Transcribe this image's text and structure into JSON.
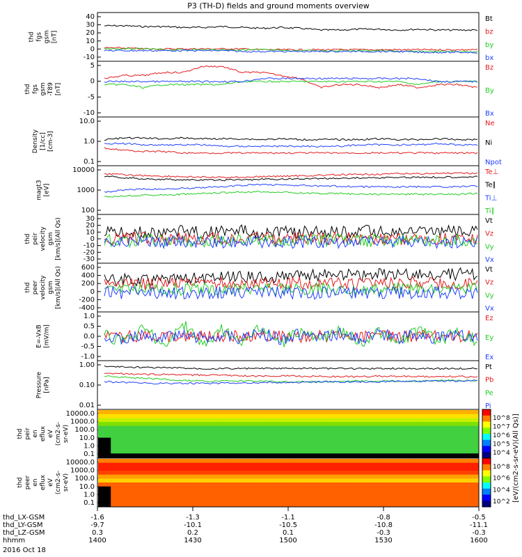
{
  "title": "P3 (TH-D) fields and ground moments overview",
  "colors": {
    "black": "#000000",
    "red": "#e41a1c",
    "green": "#22cc22",
    "blue": "#1f3fff"
  },
  "chart_data": [
    {
      "type": "line",
      "ylabel": [
        "thd",
        "fgs",
        "gsm",
        "[nT]"
      ],
      "yticks": [
        "40",
        "30",
        "20",
        "10",
        "0",
        "-10"
      ],
      "ylim": [
        -10,
        42
      ],
      "legend": [
        {
          "label": "Bt",
          "color": "black"
        },
        {
          "label": "bz",
          "color": "red"
        },
        {
          "label": "by",
          "color": "green"
        },
        {
          "label": "bx",
          "color": "blue"
        }
      ],
      "series": [
        {
          "name": "Bt",
          "color": "black",
          "values": [
            29,
            29,
            28,
            28,
            27,
            27,
            28,
            27,
            26,
            27,
            26,
            24,
            24,
            25,
            25,
            24,
            25,
            24,
            24,
            24
          ]
        },
        {
          "name": "bz",
          "color": "red",
          "values": [
            3,
            3,
            2,
            2,
            2,
            2,
            2,
            2,
            1,
            1,
            1,
            1,
            1,
            1,
            1,
            1,
            1,
            1,
            1,
            1
          ]
        },
        {
          "name": "by",
          "color": "green",
          "values": [
            2,
            2,
            2,
            1,
            1,
            1,
            1,
            1,
            1,
            0,
            0,
            0,
            0,
            0,
            0,
            -1,
            -1,
            -1,
            -1,
            -1
          ]
        },
        {
          "name": "bx",
          "color": "blue",
          "values": [
            0,
            0,
            0,
            0,
            0,
            0,
            0,
            -1,
            -1,
            -1,
            -1,
            -1,
            -1,
            -1,
            -1,
            -1,
            -2,
            -2,
            -2,
            -2
          ]
        }
      ]
    },
    {
      "type": "line",
      "ylabel": [
        "thd",
        "fgs",
        "gsm",
        "-T89",
        "[nT]"
      ],
      "yticks": [
        "5",
        "0",
        "-5",
        "-10"
      ],
      "ylim": [
        -12,
        5
      ],
      "legend": [
        {
          "label": "Bz",
          "color": "red"
        },
        {
          "label": "By",
          "color": "green"
        },
        {
          "label": "Bx",
          "color": "blue"
        }
      ],
      "series": [
        {
          "name": "Bz",
          "color": "red",
          "values": [
            0,
            1,
            1,
            2,
            2,
            4,
            4,
            2,
            2,
            1,
            0,
            -3,
            -2,
            -2,
            -3,
            -2,
            -3,
            -2,
            -2,
            -3
          ]
        },
        {
          "name": "By",
          "color": "green",
          "values": [
            -2,
            -2,
            -3,
            -2,
            -2,
            -2,
            -2,
            -1,
            -1,
            -1,
            -1,
            -1,
            -1,
            -1,
            -1,
            -1,
            -2,
            -1,
            -1,
            -1
          ]
        },
        {
          "name": "Bx",
          "color": "blue",
          "values": [
            -1,
            -1,
            -1,
            -1,
            -1,
            -1,
            -1,
            -1,
            0,
            0,
            0,
            0,
            0,
            0,
            0,
            0,
            0,
            -1,
            -1,
            -1
          ]
        }
      ]
    },
    {
      "type": "line",
      "scale": "log",
      "ylabel": [
        "Density",
        "[1/cc]",
        "[cm-3]"
      ],
      "yticks": [
        "10.0",
        "1.0",
        "0.1"
      ],
      "ylim": [
        0.1,
        10
      ],
      "legend": [
        {
          "label": "Ne",
          "color": "red"
        },
        {
          "label": "Ni",
          "color": "black"
        },
        {
          "label": "Npot",
          "color": "blue"
        }
      ],
      "series": [
        {
          "name": "Ne",
          "color": "red",
          "values": [
            0.5,
            0.4,
            0.35,
            0.35,
            0.3,
            0.3,
            0.3,
            0.3,
            0.3,
            0.3,
            0.3,
            0.3,
            0.3,
            0.3,
            0.3,
            0.3,
            0.3,
            0.3,
            0.3,
            0.3
          ]
        },
        {
          "name": "Ni",
          "color": "black",
          "values": [
            1.2,
            1.4,
            1.4,
            1.3,
            1.4,
            1.3,
            1.3,
            1.3,
            1.2,
            1.3,
            1.2,
            1.2,
            1.2,
            1.2,
            1.3,
            1.2,
            1.2,
            1.3,
            1.2,
            1.2
          ]
        },
        {
          "name": "Npot",
          "color": "blue",
          "values": [
            0.8,
            0.8,
            0.7,
            0.7,
            0.7,
            0.7,
            0.6,
            0.6,
            0.6,
            0.6,
            0.6,
            0.6,
            0.6,
            0.7,
            0.7,
            0.7,
            0.7,
            0.8,
            0.7,
            0.7
          ]
        }
      ]
    },
    {
      "type": "line",
      "scale": "log",
      "ylabel": [
        "magt3",
        "[eV]"
      ],
      "yticks": [
        "10000",
        "1000",
        "100"
      ],
      "ylim": [
        100,
        10000
      ],
      "legend": [
        {
          "label": "Te⊥",
          "color": "red"
        },
        {
          "label": "Te∥",
          "color": "black"
        },
        {
          "label": "Ti⊥",
          "color": "blue"
        },
        {
          "label": "Ti∥",
          "color": "green"
        }
      ],
      "series": [
        {
          "name": "Te⊥",
          "color": "red",
          "values": [
            5500,
            4800,
            4500,
            4200,
            4000,
            3800,
            3700,
            3800,
            4000,
            4200,
            4400,
            4600,
            4800,
            5000,
            5200,
            5400,
            5500,
            5600,
            5600,
            5700
          ]
        },
        {
          "name": "Te∥",
          "color": "black",
          "values": [
            4200,
            3600,
            3200,
            3000,
            2900,
            2800,
            2800,
            2900,
            3000,
            3100,
            3200,
            3300,
            3400,
            3500,
            3600,
            3700,
            3800,
            3800,
            3900,
            4000
          ]
        },
        {
          "name": "Ti⊥",
          "color": "blue",
          "values": [
            800,
            1000,
            1100,
            1100,
            1200,
            1300,
            1400,
            1600,
            1800,
            1700,
            1600,
            1500,
            1500,
            1400,
            1400,
            1400,
            1400,
            1400,
            1400,
            1500
          ]
        },
        {
          "name": "Ti∥",
          "color": "green",
          "values": [
            500,
            550,
            600,
            600,
            650,
            700,
            750,
            800,
            850,
            800,
            750,
            700,
            700,
            650,
            650,
            650,
            650,
            650,
            650,
            700
          ]
        }
      ]
    },
    {
      "type": "line",
      "ylabel": [
        "thd",
        "peir",
        "velocity",
        "gsm",
        "[km/s](All Qs)"
      ],
      "yticks": [
        "30",
        "20",
        "10",
        "0",
        "-10",
        "-20",
        "-30"
      ],
      "ylim": [
        -30,
        30
      ],
      "legend": [
        {
          "label": "Vt",
          "color": "black"
        },
        {
          "label": "Vz",
          "color": "red"
        },
        {
          "label": "Vy",
          "color": "green"
        },
        {
          "label": "Vx",
          "color": "blue"
        }
      ],
      "series": [
        {
          "name": "Vt",
          "color": "black",
          "values": [
            8,
            9,
            8,
            9,
            10,
            9,
            10,
            11,
            9,
            10,
            9,
            10,
            9,
            10,
            10,
            9,
            10,
            9,
            10,
            9
          ]
        },
        {
          "name": "Vz",
          "color": "red",
          "values": [
            1,
            0,
            1,
            0,
            1,
            0,
            1,
            0,
            1,
            0,
            1,
            0,
            1,
            0,
            1,
            0,
            1,
            0,
            1,
            0
          ]
        },
        {
          "name": "Vy",
          "color": "green",
          "values": [
            -2,
            -3,
            -2,
            -3,
            -2,
            -3,
            -2,
            -3,
            -2,
            -3,
            -2,
            -3,
            -2,
            -3,
            -2,
            -3,
            -2,
            -3,
            -2,
            -3
          ]
        },
        {
          "name": "Vx",
          "color": "blue",
          "values": [
            -4,
            -5,
            -4,
            -5,
            -4,
            -5,
            -4,
            -5,
            -4,
            -5,
            -4,
            -5,
            -4,
            -5,
            -4,
            -5,
            -4,
            -5,
            -4,
            -5
          ]
        }
      ]
    },
    {
      "type": "line",
      "ylabel": [
        "thd",
        "peer",
        "velocity",
        "gsm",
        "[km/s](All Qs)"
      ],
      "yticks": [
        "600",
        "400",
        "200",
        "0",
        "-200",
        "-400"
      ],
      "ylim": [
        -450,
        650
      ],
      "legend": [
        {
          "label": "Vt",
          "color": "black"
        },
        {
          "label": "Vz",
          "color": "red"
        },
        {
          "label": "Vy",
          "color": "green"
        },
        {
          "label": "Vx",
          "color": "blue"
        }
      ],
      "series": [
        {
          "name": "Vt",
          "color": "black",
          "values": [
            300,
            290,
            300,
            310,
            320,
            330,
            340,
            350,
            360,
            380,
            390,
            400,
            400,
            410,
            420,
            410,
            420,
            420,
            430,
            430
          ]
        },
        {
          "name": "Vz",
          "color": "red",
          "values": [
            200,
            190,
            200,
            200,
            210,
            200,
            210,
            200,
            210,
            200,
            210,
            200,
            210,
            200,
            210,
            200,
            210,
            200,
            210,
            200
          ]
        },
        {
          "name": "Vy",
          "color": "green",
          "values": [
            60,
            70,
            60,
            70,
            60,
            70,
            60,
            70,
            60,
            70,
            60,
            70,
            60,
            70,
            60,
            70,
            60,
            70,
            60,
            70
          ]
        },
        {
          "name": "Vx",
          "color": "blue",
          "values": [
            -20,
            -30,
            -20,
            -40,
            -30,
            -20,
            -30,
            -40,
            -30,
            -20,
            -40,
            -30,
            -20,
            -30,
            -40,
            -30,
            -20,
            -30,
            -40,
            -30
          ]
        }
      ]
    },
    {
      "type": "line",
      "ylabel": [
        "E=-VxB",
        "[mV/m]"
      ],
      "yticks": [
        "1.0",
        "0.5",
        "0.0",
        "-0.5",
        "-1.0"
      ],
      "ylim": [
        -1.0,
        1.0
      ],
      "legend": [
        {
          "label": "Ez",
          "color": "red"
        },
        {
          "label": "Ey",
          "color": "green"
        },
        {
          "label": "Ex",
          "color": "blue"
        }
      ],
      "series": [
        {
          "name": "Ez",
          "color": "red",
          "values": [
            0,
            0,
            0,
            0,
            0,
            0,
            0,
            0,
            0,
            0,
            0,
            0,
            0,
            0,
            0,
            0,
            0,
            0,
            0,
            0
          ]
        },
        {
          "name": "Ey",
          "color": "green",
          "values": [
            0.1,
            -0.3,
            0.4,
            -0.5,
            0.6,
            -0.4,
            0.3,
            -0.3,
            0.4,
            -0.3,
            0.3,
            -0.2,
            0.3,
            -0.3,
            0.2,
            -0.3,
            0.3,
            -0.2,
            0.2,
            -0.2
          ]
        },
        {
          "name": "Ex",
          "color": "blue",
          "values": [
            0,
            -0.1,
            0.1,
            -0.1,
            0.1,
            -0.1,
            0.1,
            -0.1,
            0.1,
            -0.1,
            0.1,
            -0.1,
            0.1,
            -0.1,
            0.1,
            -0.1,
            0.1,
            -0.1,
            0.1,
            -0.1
          ]
        }
      ]
    },
    {
      "type": "line",
      "scale": "log",
      "ylabel": [
        "Pressure",
        "[nPa]"
      ],
      "yticks": [
        "1.00",
        "0.10",
        "0.01"
      ],
      "ylim": [
        0.01,
        1.0
      ],
      "legend": [
        {
          "label": "Pt",
          "color": "black"
        },
        {
          "label": "Pb",
          "color": "red"
        },
        {
          "label": "Pe",
          "color": "green"
        },
        {
          "label": "Pi",
          "color": "blue"
        }
      ],
      "series": [
        {
          "name": "Pt",
          "color": "black",
          "values": [
            0.7,
            0.65,
            0.62,
            0.6,
            0.58,
            0.55,
            0.55,
            0.55,
            0.55,
            0.55,
            0.55,
            0.55,
            0.55,
            0.55,
            0.55,
            0.55,
            0.55,
            0.55,
            0.55,
            0.55
          ]
        },
        {
          "name": "Pb",
          "color": "red",
          "values": [
            0.35,
            0.32,
            0.3,
            0.3,
            0.28,
            0.28,
            0.27,
            0.26,
            0.25,
            0.26,
            0.25,
            0.24,
            0.24,
            0.24,
            0.25,
            0.24,
            0.24,
            0.24,
            0.24,
            0.24
          ]
        },
        {
          "name": "Pe",
          "color": "green",
          "values": [
            0.25,
            0.22,
            0.2,
            0.18,
            0.16,
            0.15,
            0.15,
            0.15,
            0.15,
            0.14,
            0.14,
            0.14,
            0.14,
            0.15,
            0.15,
            0.15,
            0.15,
            0.16,
            0.16,
            0.16
          ]
        },
        {
          "name": "Pi",
          "color": "blue",
          "values": [
            0.14,
            0.13,
            0.12,
            0.12,
            0.12,
            0.12,
            0.12,
            0.12,
            0.13,
            0.13,
            0.13,
            0.14,
            0.14,
            0.14,
            0.14,
            0.15,
            0.15,
            0.15,
            0.15,
            0.16
          ]
        }
      ]
    },
    {
      "type": "heatmap",
      "ylabel": [
        "thd",
        "peir",
        "en",
        "eflux",
        "eV",
        "(cm2-s-",
        "sr-eV)"
      ],
      "yticks": [
        "10000.0",
        "1000.0",
        "100.0",
        "10.0",
        "1.0",
        "0.1"
      ],
      "colorbar_ticks": [
        "10^8",
        "10^7",
        "10^6",
        "10^5",
        "10^4"
      ],
      "colorbar_label": "[eV/(cm2-s-sr-eV)]",
      "profile": [
        0.2,
        0.45,
        0.6,
        0.6,
        0.55,
        0.5,
        0.45,
        0.45,
        0.5,
        0.55,
        0.6
      ]
    },
    {
      "type": "heatmap",
      "ylabel": [
        "thd",
        "peer",
        "en",
        "eflux",
        "eV",
        "(cm2-s-",
        "sr-eV)"
      ],
      "yticks": [
        "10000.0",
        "1000.0",
        "100.0",
        "10.0",
        "1.0",
        "0.1"
      ],
      "colorbar_ticks": [
        "10^8",
        "10^6",
        "10^4",
        "10^2"
      ],
      "colorbar_label": "[eV/(cm2-s-sr-eV)(All Qs)]",
      "profile": [
        0.5,
        0.55,
        0.6,
        0.62,
        0.63,
        0.65,
        0.8,
        0.85,
        0.85,
        0.9,
        0.95
      ]
    }
  ],
  "axis": {
    "rows": [
      {
        "label": "thd_LX-GSM",
        "values": [
          "-1.6",
          "-1.3",
          "-1.1",
          "-0.8",
          "-0.5"
        ]
      },
      {
        "label": "thd_LY-GSM",
        "values": [
          "-9.7",
          "-10.1",
          "-10.5",
          "-10.8",
          "-11.1"
        ]
      },
      {
        "label": "thd_LZ-GSM",
        "values": [
          "0.3",
          "0.2",
          "0.1",
          "-0.3",
          "-0.3"
        ]
      },
      {
        "label": "hhmm",
        "values": [
          "1400",
          "1430",
          "1500",
          "1530",
          "1600"
        ]
      }
    ],
    "date": "2016 Oct 18"
  }
}
